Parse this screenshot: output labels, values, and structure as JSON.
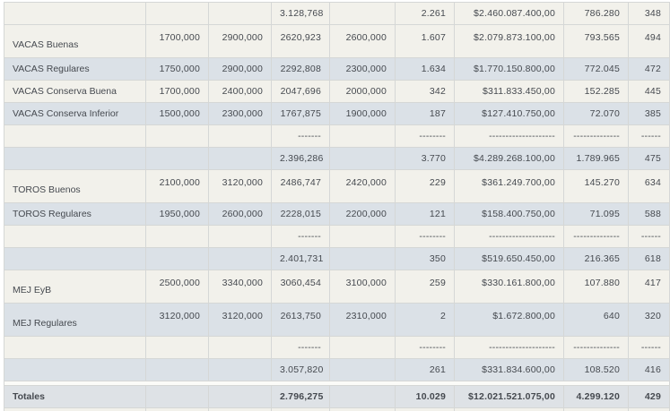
{
  "colors": {
    "row_light": "#f2f1eb",
    "row_dark": "#dbe1e7",
    "totals_bg": "#dee2e6",
    "gap_bg": "#fbfbf8",
    "border": "#d5d7d6",
    "outer_border": "#c9cdd1",
    "text": "#45494f",
    "page_bg": "#ffffff"
  },
  "table": {
    "column_count": 9,
    "rows": [
      {
        "kind": "summary",
        "shade": "light",
        "cells": [
          "",
          "",
          "",
          "3.128,768",
          "",
          "2.261",
          "$2.460.087.400,00",
          "786.280",
          "348"
        ]
      },
      {
        "kind": "data",
        "shade": "light",
        "tall": true,
        "cells": [
          "VACAS Buenas",
          "1700,000",
          "2900,000",
          "2620,923",
          "2600,000",
          "1.607",
          "$2.079.873.100,00",
          "793.565",
          "494"
        ]
      },
      {
        "kind": "data",
        "shade": "dark",
        "cells": [
          "VACAS Regulares",
          "1750,000",
          "2900,000",
          "2292,808",
          "2300,000",
          "1.634",
          "$1.770.150.800,00",
          "772.045",
          "472"
        ]
      },
      {
        "kind": "data",
        "shade": "light",
        "cells": [
          "VACAS Conserva Buena",
          "1700,000",
          "2400,000",
          "2047,696",
          "2000,000",
          "342",
          "$311.833.450,00",
          "152.285",
          "445"
        ]
      },
      {
        "kind": "data",
        "shade": "dark",
        "cells": [
          "VACAS Conserva Inferior",
          "1500,000",
          "2300,000",
          "1767,875",
          "1900,000",
          "187",
          "$127.410.750,00",
          "72.070",
          "385"
        ]
      },
      {
        "kind": "dashes",
        "shade": "light",
        "cells": [
          "",
          "",
          "",
          "-------",
          "",
          "--------",
          "--------------------",
          "--------------",
          "------"
        ]
      },
      {
        "kind": "summary",
        "shade": "dark",
        "cells": [
          "",
          "",
          "",
          "2.396,286",
          "",
          "3.770",
          "$4.289.268.100,00",
          "1.789.965",
          "475"
        ]
      },
      {
        "kind": "data",
        "shade": "light",
        "tall": true,
        "cells": [
          "TOROS Buenos",
          "2100,000",
          "3120,000",
          "2486,747",
          "2420,000",
          "229",
          "$361.249.700,00",
          "145.270",
          "634"
        ]
      },
      {
        "kind": "data",
        "shade": "dark",
        "cells": [
          "TOROS Regulares",
          "1950,000",
          "2600,000",
          "2228,015",
          "2200,000",
          "121",
          "$158.400.750,00",
          "71.095",
          "588"
        ]
      },
      {
        "kind": "dashes",
        "shade": "light",
        "cells": [
          "",
          "",
          "",
          "-------",
          "",
          "--------",
          "--------------------",
          "--------------",
          "------"
        ]
      },
      {
        "kind": "summary",
        "shade": "dark",
        "cells": [
          "",
          "",
          "",
          "2.401,731",
          "",
          "350",
          "$519.650.450,00",
          "216.365",
          "618"
        ]
      },
      {
        "kind": "data",
        "shade": "light",
        "tall": true,
        "cells": [
          "MEJ EyB",
          "2500,000",
          "3340,000",
          "3060,454",
          "3100,000",
          "259",
          "$330.161.800,00",
          "107.880",
          "417"
        ]
      },
      {
        "kind": "data",
        "shade": "dark",
        "tall": true,
        "cells": [
          "MEJ Regulares",
          "3120,000",
          "3120,000",
          "2613,750",
          "2310,000",
          "2",
          "$1.672.800,00",
          "640",
          "320"
        ]
      },
      {
        "kind": "dashes",
        "shade": "light",
        "cells": [
          "",
          "",
          "",
          "-------",
          "",
          "--------",
          "--------------------",
          "--------------",
          "------"
        ]
      },
      {
        "kind": "summary",
        "shade": "dark",
        "cells": [
          "",
          "",
          "",
          "3.057,820",
          "",
          "261",
          "$331.834.600,00",
          "108.520",
          "416"
        ]
      },
      {
        "kind": "gap"
      },
      {
        "kind": "totals",
        "shade": "totals",
        "cells": [
          "Totales",
          "",
          "",
          "2.796,275",
          "",
          "10.029",
          "$12.021.521.075,00",
          "4.299.120",
          "429"
        ]
      },
      {
        "kind": "partial",
        "shade": "light",
        "cells": [
          "",
          "",
          "",
          "",
          "",
          "",
          "",
          "",
          ""
        ]
      }
    ]
  }
}
